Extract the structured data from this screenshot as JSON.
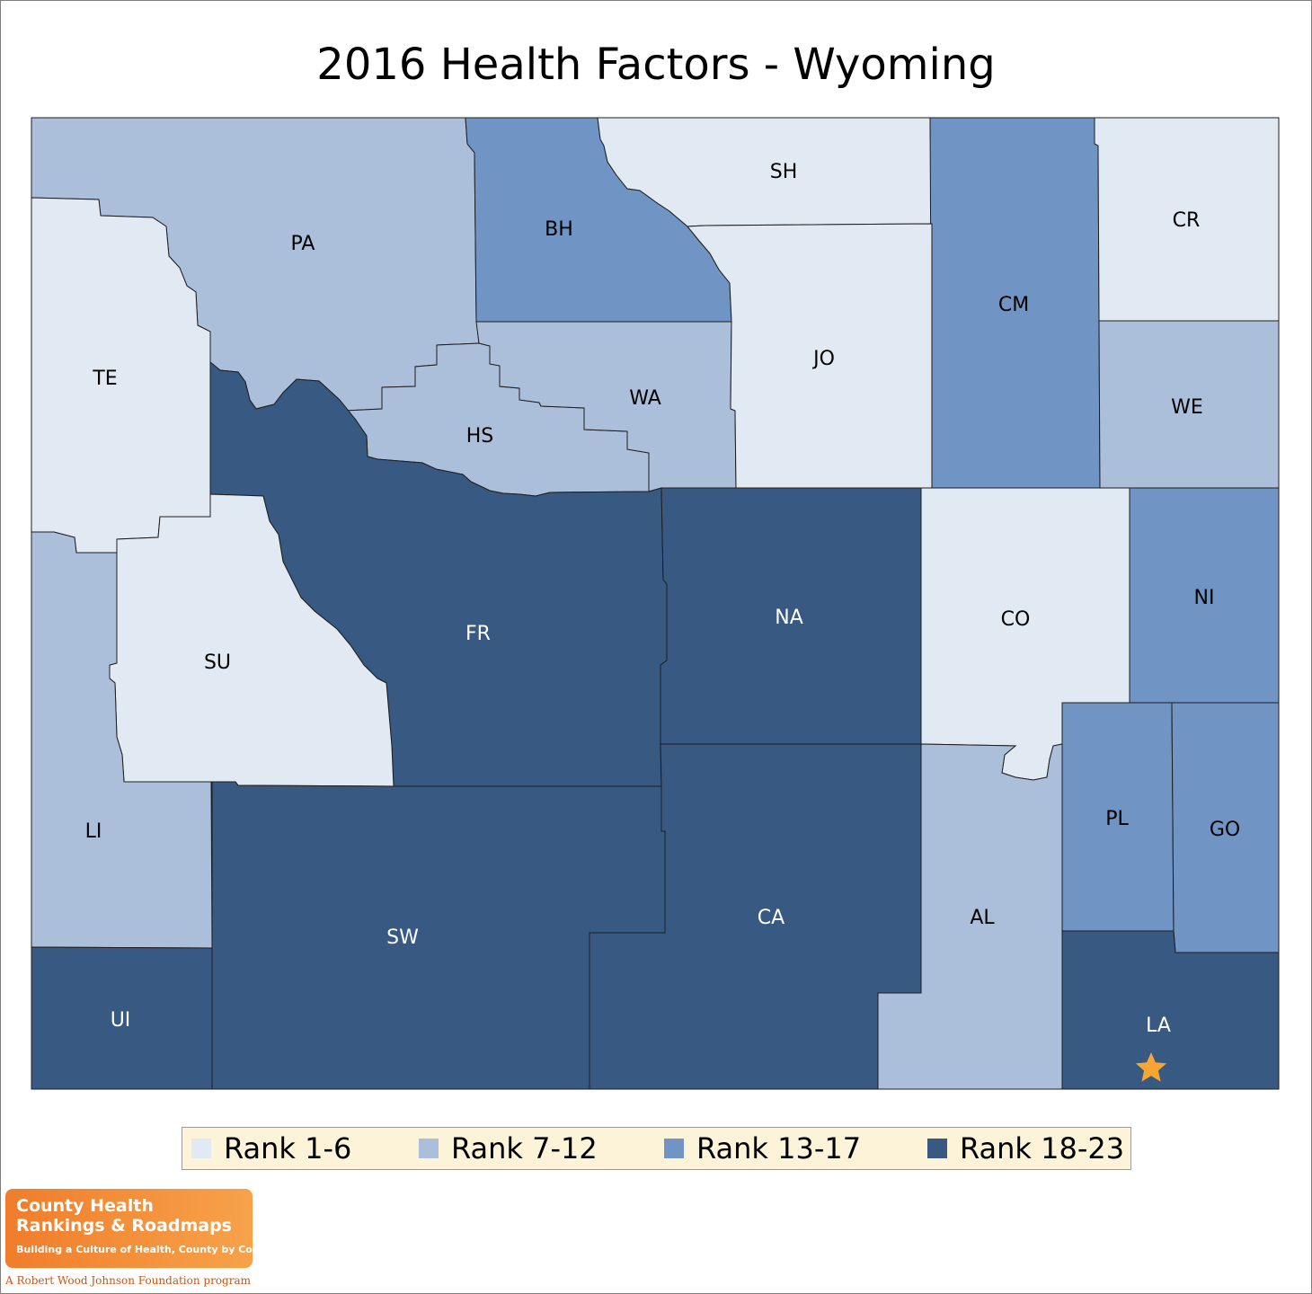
{
  "title": "2016 Health Factors - Wyoming",
  "colors": {
    "rank_1_6": "#e1e9f3",
    "rank_7_12": "#abbfdb",
    "rank_13_17": "#7094c3",
    "rank_18_23": "#385981",
    "star": "#f7a634"
  },
  "legend": [
    {
      "label": "Rank 1-6",
      "color": "#e1e9f3"
    },
    {
      "label": "Rank 7-12",
      "color": "#abbfdb"
    },
    {
      "label": "Rank 13-17",
      "color": "#7094c3"
    },
    {
      "label": "Rank 18-23",
      "color": "#385981"
    }
  ],
  "counties": [
    {
      "abbr": "PA",
      "rank_group": "Rank 7-12"
    },
    {
      "abbr": "BH",
      "rank_group": "Rank 13-17"
    },
    {
      "abbr": "SH",
      "rank_group": "Rank 1-6"
    },
    {
      "abbr": "CM",
      "rank_group": "Rank 13-17"
    },
    {
      "abbr": "CR",
      "rank_group": "Rank 1-6"
    },
    {
      "abbr": "TE",
      "rank_group": "Rank 1-6"
    },
    {
      "abbr": "HS",
      "rank_group": "Rank 7-12"
    },
    {
      "abbr": "WA",
      "rank_group": "Rank 7-12"
    },
    {
      "abbr": "JO",
      "rank_group": "Rank 1-6"
    },
    {
      "abbr": "WE",
      "rank_group": "Rank 7-12"
    },
    {
      "abbr": "FR",
      "rank_group": "Rank 18-23"
    },
    {
      "abbr": "SU",
      "rank_group": "Rank 1-6"
    },
    {
      "abbr": "NA",
      "rank_group": "Rank 18-23"
    },
    {
      "abbr": "CO",
      "rank_group": "Rank 1-6"
    },
    {
      "abbr": "NI",
      "rank_group": "Rank 13-17"
    },
    {
      "abbr": "LI",
      "rank_group": "Rank 7-12"
    },
    {
      "abbr": "PL",
      "rank_group": "Rank 13-17"
    },
    {
      "abbr": "GO",
      "rank_group": "Rank 13-17"
    },
    {
      "abbr": "SW",
      "rank_group": "Rank 18-23"
    },
    {
      "abbr": "CA",
      "rank_group": "Rank 18-23"
    },
    {
      "abbr": "AL",
      "rank_group": "Rank 7-12"
    },
    {
      "abbr": "UI",
      "rank_group": "Rank 18-23"
    },
    {
      "abbr": "LA",
      "rank_group": "Rank 18-23"
    }
  ],
  "capital_marker": {
    "county": "LA",
    "icon": "star-icon"
  },
  "logo": {
    "line1": "County Health",
    "line2": "Rankings & Roadmaps",
    "tagline": "Building a Culture of Health, County by County",
    "footer": "A Robert Wood Johnson Foundation program"
  }
}
